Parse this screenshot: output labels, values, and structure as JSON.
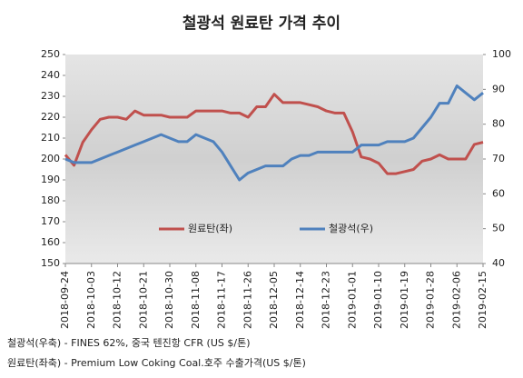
{
  "chart_data": {
    "type": "line",
    "title": "철광석 원료탄 가격 추이",
    "x": [
      "2018-09-24",
      "2018-09-27",
      "2018-09-30",
      "2018-10-03",
      "2018-10-06",
      "2018-10-09",
      "2018-10-12",
      "2018-10-15",
      "2018-10-18",
      "2018-10-21",
      "2018-10-24",
      "2018-10-27",
      "2018-10-30",
      "2018-11-02",
      "2018-11-05",
      "2018-11-08",
      "2018-11-11",
      "2018-11-14",
      "2018-11-17",
      "2018-11-20",
      "2018-11-23",
      "2018-11-26",
      "2018-11-29",
      "2018-12-02",
      "2018-12-05",
      "2018-12-08",
      "2018-12-11",
      "2018-12-14",
      "2018-12-17",
      "2018-12-20",
      "2018-12-23",
      "2018-12-26",
      "2018-12-29",
      "2019-01-01",
      "2019-01-04",
      "2019-01-07",
      "2019-01-10",
      "2019-01-13",
      "2019-01-16",
      "2019-01-19",
      "2019-01-22",
      "2019-01-25",
      "2019-01-28",
      "2019-01-31",
      "2019-02-03",
      "2019-02-06",
      "2019-02-09",
      "2019-02-12",
      "2019-02-15"
    ],
    "xlim": [
      "2018-09-24",
      "2019-02-15"
    ],
    "xticks": [
      "2018-09-24",
      "2018-10-03",
      "2018-10-12",
      "2018-10-21",
      "2018-10-30",
      "2018-11-08",
      "2018-11-17",
      "2018-11-26",
      "2018-12-05",
      "2018-12-14",
      "2018-12-23",
      "2019-01-01",
      "2019-01-10",
      "2019-01-19",
      "2019-01-28",
      "2019-02-06",
      "2019-02-15"
    ],
    "series": [
      {
        "name": "원료탄(좌)",
        "color": "#c0504d",
        "axis": "y",
        "values": [
          202,
          197,
          208,
          214,
          219,
          220,
          220,
          219,
          223,
          221,
          221,
          221,
          220,
          220,
          220,
          223,
          223,
          223,
          223,
          222,
          222,
          220,
          225,
          225,
          231,
          227,
          227,
          227,
          226,
          225,
          223,
          222,
          222,
          213,
          201,
          200,
          198,
          193,
          193,
          194,
          195,
          199,
          200,
          202,
          200,
          200,
          200,
          207,
          208
        ]
      },
      {
        "name": "철광석(우)",
        "color": "#4f81bd",
        "axis": "y2",
        "values": [
          70,
          69,
          69,
          69,
          70,
          71,
          72,
          73,
          74,
          75,
          76,
          77,
          76,
          75,
          75,
          77,
          76,
          75,
          72,
          68,
          64,
          66,
          67,
          68,
          68,
          68,
          70,
          71,
          71,
          72,
          72,
          72,
          72,
          72,
          74,
          74,
          74,
          75,
          75,
          75,
          76,
          79,
          82,
          86,
          86,
          91,
          89,
          87,
          89
        ]
      }
    ],
    "ylim": [
      150,
      250
    ],
    "yticks": [
      150,
      160,
      170,
      180,
      190,
      200,
      210,
      220,
      230,
      240,
      250
    ],
    "y2lim": [
      40,
      100
    ],
    "y2ticks": [
      40,
      50,
      60,
      70,
      80,
      90,
      100
    ],
    "notes": [
      "철광석(우축) - FINES 62%, 중국 텐진항 CFR (US $/톤)",
      "원료탄(좌축) - Premium Low Coking Coal.호주 수출가격(US $/톤)"
    ]
  }
}
